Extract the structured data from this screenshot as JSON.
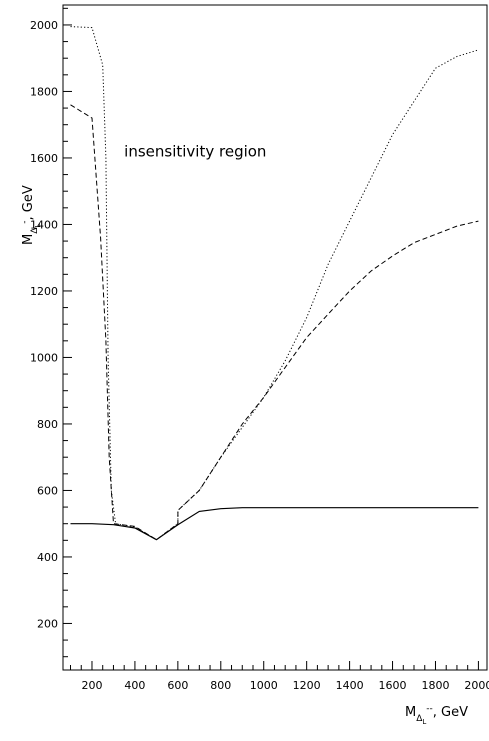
{
  "chart_data": {
    "type": "line",
    "title": "",
    "xlabel": {
      "main": "M",
      "sub": "Δ",
      "subsub": "L",
      "sup": "--",
      "unit": ", GeV"
    },
    "ylabel": {
      "main": "M",
      "sub": "Δ",
      "subsub": "L",
      "sup": "-",
      "unit": ", GeV"
    },
    "xlim": [
      65,
      2040
    ],
    "ylim": [
      60,
      2060
    ],
    "x_ticks": [
      200,
      400,
      600,
      800,
      1000,
      1200,
      1400,
      1600,
      1800,
      2000
    ],
    "y_ticks": [
      200,
      400,
      600,
      800,
      1000,
      1200,
      1400,
      1600,
      1800,
      2000
    ],
    "x_tick_labels": [
      "200",
      "400",
      "600",
      "800",
      "1000",
      "1200",
      "1400",
      "1600",
      "1800",
      "2000"
    ],
    "y_tick_labels": [
      "200",
      "400",
      "600",
      "800",
      "1000",
      "1200",
      "1400",
      "1600",
      "1800",
      "2000"
    ],
    "annotation": {
      "text": "insensitivity region",
      "x": 350,
      "y": 1605
    },
    "grid": false,
    "legend": "none",
    "series": [
      {
        "style": "solid",
        "color": "#000000",
        "points": [
          [
            100,
            500
          ],
          [
            200,
            500
          ],
          [
            300,
            497
          ],
          [
            400,
            487
          ],
          [
            500,
            452
          ],
          [
            600,
            497
          ],
          [
            700,
            537
          ],
          [
            800,
            545
          ],
          [
            900,
            548
          ],
          [
            1000,
            548
          ],
          [
            1200,
            548
          ],
          [
            1400,
            548
          ],
          [
            1600,
            548
          ],
          [
            1800,
            548
          ],
          [
            2000,
            548
          ]
        ]
      },
      {
        "style": "dashed",
        "color": "#000000",
        "points": [
          [
            100,
            1760
          ],
          [
            200,
            1720
          ],
          [
            240,
            1360
          ],
          [
            265,
            1050
          ],
          [
            280,
            700
          ],
          [
            300,
            500
          ],
          [
            400,
            492
          ],
          [
            500,
            452
          ],
          [
            600,
            500
          ],
          [
            600,
            540
          ],
          [
            700,
            600
          ],
          [
            800,
            700
          ],
          [
            900,
            800
          ],
          [
            1000,
            880
          ],
          [
            1100,
            970
          ],
          [
            1200,
            1060
          ],
          [
            1300,
            1130
          ],
          [
            1400,
            1200
          ],
          [
            1500,
            1260
          ],
          [
            1600,
            1305
          ],
          [
            1700,
            1345
          ],
          [
            1800,
            1370
          ],
          [
            1900,
            1395
          ],
          [
            2000,
            1410
          ]
        ]
      },
      {
        "style": "dotted",
        "color": "#000000",
        "points": [
          [
            100,
            1995
          ],
          [
            200,
            1992
          ],
          [
            250,
            1880
          ],
          [
            265,
            1600
          ],
          [
            275,
            1000
          ],
          [
            290,
            600
          ],
          [
            310,
            500
          ],
          [
            400,
            490
          ],
          [
            500,
            452
          ],
          [
            600,
            500
          ],
          [
            600,
            540
          ],
          [
            700,
            600
          ],
          [
            800,
            700
          ],
          [
            900,
            790
          ],
          [
            1000,
            880
          ],
          [
            1100,
            990
          ],
          [
            1200,
            1120
          ],
          [
            1300,
            1280
          ],
          [
            1400,
            1410
          ],
          [
            1500,
            1540
          ],
          [
            1600,
            1670
          ],
          [
            1700,
            1770
          ],
          [
            1800,
            1870
          ],
          [
            1900,
            1905
          ],
          [
            2000,
            1925
          ]
        ]
      }
    ]
  }
}
